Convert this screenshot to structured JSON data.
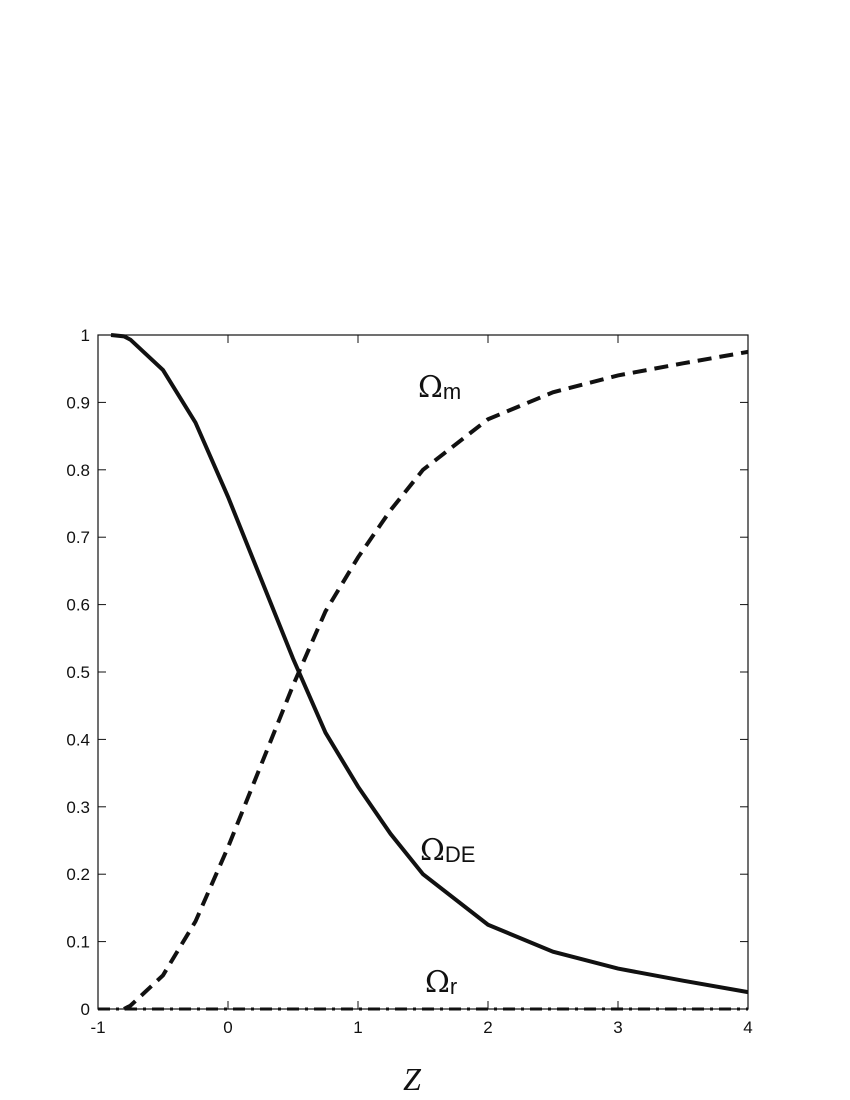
{
  "chart_data": {
    "type": "line",
    "xlabel": "Z",
    "x": [
      -1,
      -0.9,
      -0.8,
      -0.75,
      -0.5,
      -0.25,
      0,
      0.25,
      0.5,
      0.75,
      1,
      1.25,
      1.5,
      2,
      2.5,
      3,
      3.5,
      4
    ],
    "series": [
      {
        "label": {
          "symbol": "Ω",
          "subscript": "DE"
        },
        "style": "solid",
        "color": "#111111",
        "values": [
          null,
          1.0,
          0.998,
          0.993,
          0.948,
          0.87,
          0.76,
          0.64,
          0.52,
          0.41,
          0.33,
          0.26,
          0.2,
          0.125,
          0.085,
          0.06,
          0.042,
          0.025
        ]
      },
      {
        "label": {
          "symbol": "Ω",
          "subscript": "m"
        },
        "style": "dashed",
        "color": "#111111",
        "values": [
          null,
          null,
          0.0,
          0.005,
          0.05,
          0.13,
          0.24,
          0.36,
          0.48,
          0.59,
          0.67,
          0.74,
          0.8,
          0.875,
          0.915,
          0.94,
          0.958,
          0.975
        ]
      },
      {
        "label": {
          "symbol": "Ω",
          "subscript": "r"
        },
        "style": "dashdot",
        "color": "#111111",
        "values": [
          0,
          0,
          0,
          0,
          0,
          0,
          0,
          0,
          0,
          0,
          0,
          0,
          0,
          0,
          0,
          0,
          0,
          0
        ]
      }
    ],
    "xlim": [
      -1,
      4
    ],
    "ylim": [
      0,
      1
    ],
    "xticks": [
      -1,
      0,
      1,
      2,
      3,
      4
    ],
    "yticks": [
      0,
      0.1,
      0.2,
      0.3,
      0.4,
      0.5,
      0.6,
      0.7,
      0.8,
      0.9,
      1
    ],
    "grid": false
  }
}
